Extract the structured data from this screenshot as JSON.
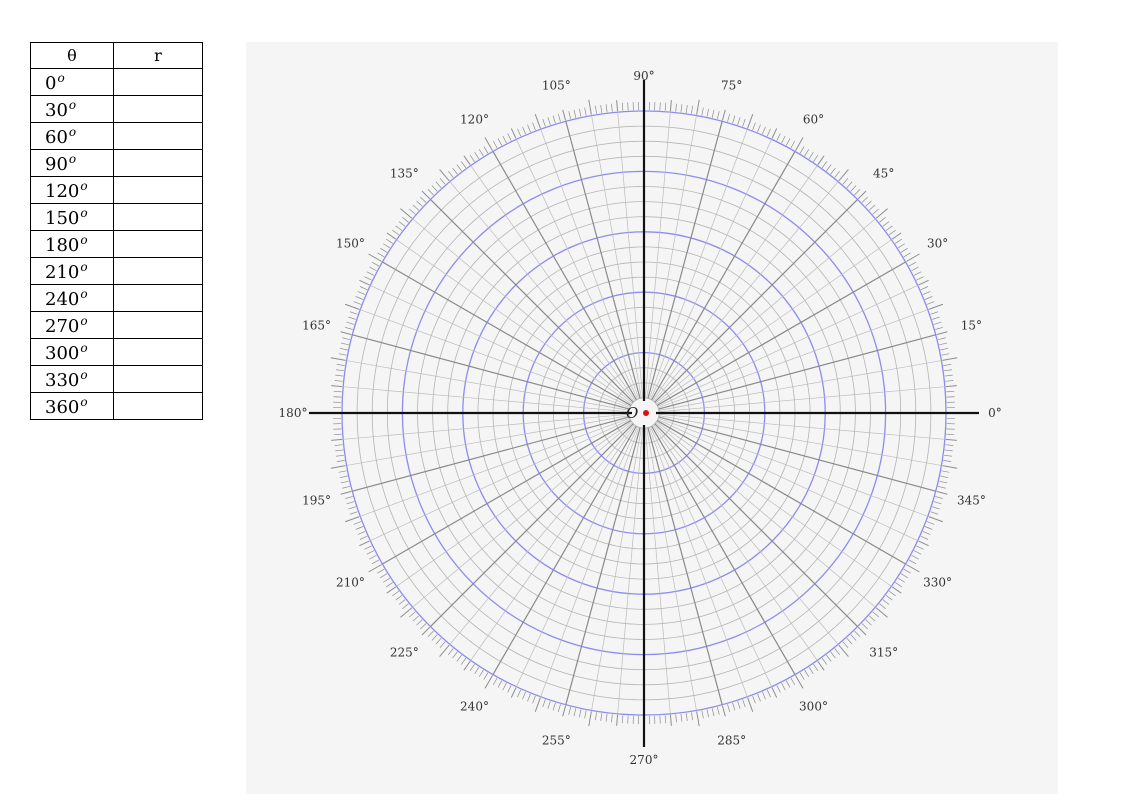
{
  "table": {
    "headers": [
      "θ",
      "r"
    ],
    "degree_mark": "o",
    "rows": [
      {
        "theta": "0",
        "r": ""
      },
      {
        "theta": "30",
        "r": ""
      },
      {
        "theta": "60",
        "r": ""
      },
      {
        "theta": "90",
        "r": ""
      },
      {
        "theta": "120",
        "r": ""
      },
      {
        "theta": "150",
        "r": ""
      },
      {
        "theta": "180",
        "r": ""
      },
      {
        "theta": "210",
        "r": ""
      },
      {
        "theta": "240",
        "r": ""
      },
      {
        "theta": "270",
        "r": ""
      },
      {
        "theta": "300",
        "r": ""
      },
      {
        "theta": "330",
        "r": ""
      },
      {
        "theta": "360",
        "r": ""
      }
    ]
  },
  "polar_grid": {
    "origin_label": "O",
    "angle_labels": [
      "0°",
      "15°",
      "30°",
      "45°",
      "60°",
      "75°",
      "90°",
      "105°",
      "120°",
      "135°",
      "150°",
      "165°",
      "180°",
      "195°",
      "210°",
      "225°",
      "240°",
      "255°",
      "270°",
      "285°",
      "300°",
      "315°",
      "330°",
      "345°"
    ],
    "radial_rings": 20,
    "highlighted_ring_every": 4,
    "spoke_step_degrees": 5,
    "major_spoke_step_degrees": 15,
    "tick_step_degrees": 1,
    "colors": {
      "panel_background": "#f5f5f5",
      "ring": "#b4b4b4",
      "highlight_ring": "#8c8cf0",
      "minor_spoke": "#bcbcbc",
      "major_spoke": "#8a8a8a",
      "axis": "#111111",
      "origin_dot": "#dd1111"
    }
  }
}
